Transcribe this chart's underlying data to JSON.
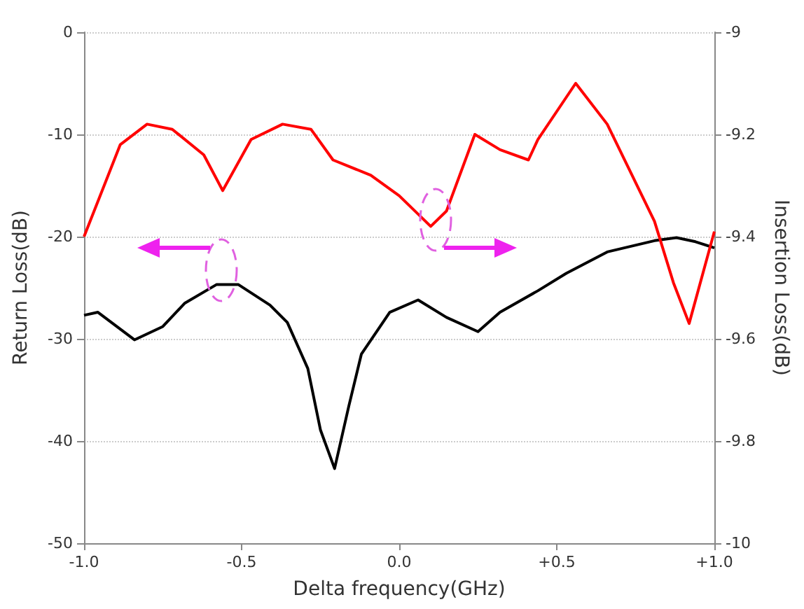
{
  "chart_data": {
    "type": "line",
    "xlabel": "Delta frequency(GHz)",
    "ylabel": "Return Loss(dB)",
    "y2label": "Insertion Loss(dB)",
    "xlim": [
      -1,
      1
    ],
    "xticks": [
      {
        "value": -1,
        "label": "-1.0"
      },
      {
        "value": -0.5,
        "label": "-0.5"
      },
      {
        "value": 0,
        "label": "0.0"
      },
      {
        "value": 0.5,
        "label": "+0.5"
      },
      {
        "value": 1,
        "label": "+1.0"
      }
    ],
    "ylim": [
      -50,
      0
    ],
    "yticks": [
      -50,
      -40,
      -30,
      -20,
      -10,
      0
    ],
    "y2lim": [
      -10,
      -9
    ],
    "y2ticks": [
      -10,
      -9.8,
      -9.6,
      -9.4,
      -9.2,
      -9
    ],
    "grid": "y",
    "marker": "none",
    "line_style": "solid",
    "series": [
      {
        "color": "#000000",
        "axis": "y",
        "x": [
          -1.0,
          -0.956,
          -0.84,
          -0.75,
          -0.68,
          -0.58,
          -0.51,
          -0.41,
          -0.355,
          -0.29,
          -0.25,
          -0.205,
          -0.16,
          -0.12,
          -0.03,
          0.06,
          0.15,
          0.25,
          0.32,
          0.44,
          0.53,
          0.66,
          0.81,
          0.88,
          0.94,
          1.0
        ],
        "values": [
          -27.7,
          -27.4,
          -30.1,
          -28.8,
          -26.5,
          -24.7,
          -24.7,
          -26.7,
          -28.4,
          -32.9,
          -38.9,
          -42.7,
          -36.6,
          -31.5,
          -27.4,
          -26.2,
          -27.9,
          -29.3,
          -27.4,
          -25.3,
          -23.6,
          -21.5,
          -20.4,
          -20.1,
          -20.5,
          -21.1
        ]
      },
      {
        "color": "#ff0000",
        "axis": "y2",
        "x": [
          -1.0,
          -0.885,
          -0.8,
          -0.72,
          -0.62,
          -0.56,
          -0.47,
          -0.37,
          -0.28,
          -0.21,
          -0.09,
          0.0,
          0.1,
          0.15,
          0.24,
          0.32,
          0.41,
          0.44,
          0.56,
          0.66,
          0.81,
          0.87,
          0.92,
          1.0
        ],
        "values": [
          -9.4,
          -9.22,
          -9.18,
          -9.19,
          -9.24,
          -9.31,
          -9.21,
          -9.18,
          -9.19,
          -9.25,
          -9.28,
          -9.32,
          -9.38,
          -9.35,
          -9.2,
          -9.23,
          -9.25,
          -9.21,
          -9.1,
          -9.18,
          -9.37,
          -9.49,
          -9.57,
          -9.39
        ]
      }
    ]
  }
}
